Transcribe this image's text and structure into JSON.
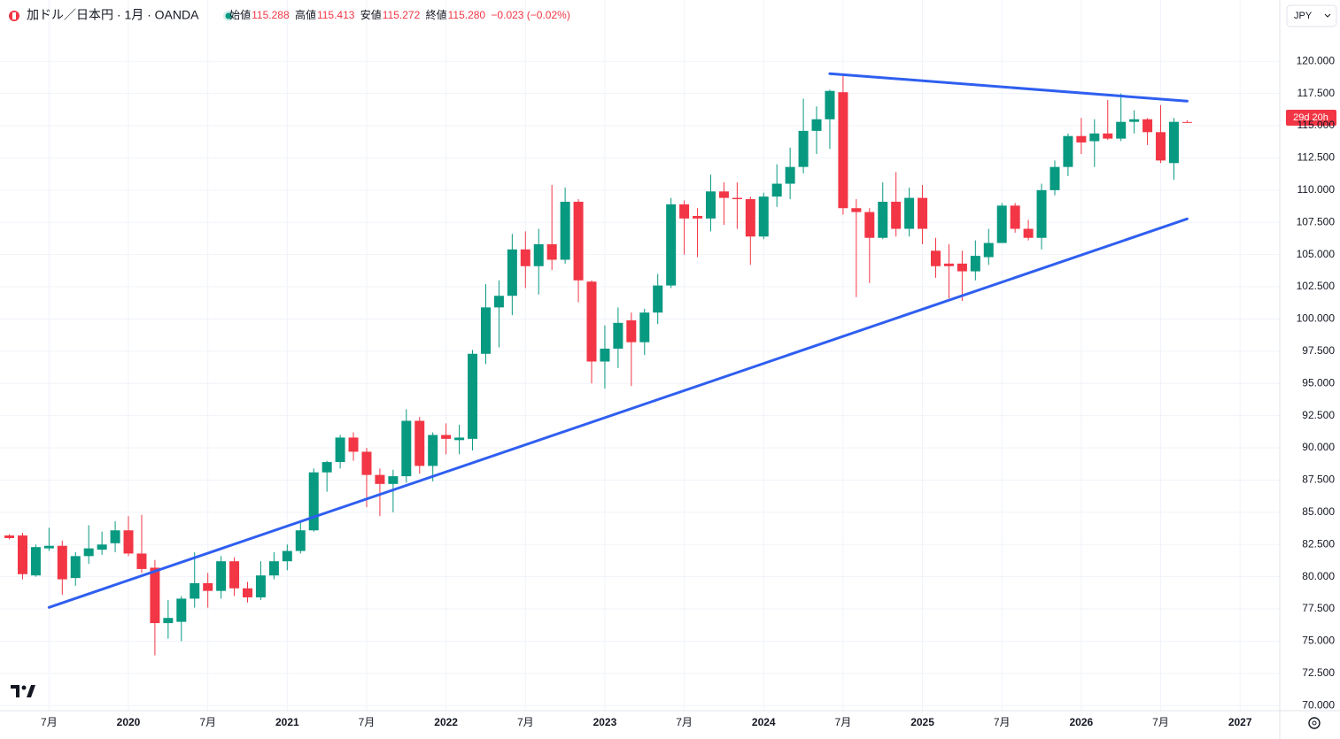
{
  "header": {
    "symbol": "加ドル／日本円 · 1月 · OANDA",
    "labels": [
      "始値",
      "高値",
      "安値",
      "終値"
    ],
    "value_labels": [
      "115.288",
      "115.413",
      "115.272",
      "115.280"
    ],
    "change": "−0.023 (−0.02%)"
  },
  "currency": "JPY",
  "countdown": "29d 20h",
  "chart_data": {
    "type": "candlestick",
    "up_color": "#089981",
    "down_color": "#f23645",
    "grid": true,
    "categories": [
      "2019-04",
      "2019-05",
      "2019-06",
      "2019-07",
      "2019-08",
      "2019-09",
      "2019-10",
      "2019-11",
      "2019-12",
      "2020-01",
      "2020-02",
      "2020-03",
      "2020-04",
      "2020-05",
      "2020-06",
      "2020-07",
      "2020-08",
      "2020-09",
      "2020-10",
      "2020-11",
      "2020-12",
      "2021-01",
      "2021-02",
      "2021-03",
      "2021-04",
      "2021-05",
      "2021-06",
      "2021-07",
      "2021-08",
      "2021-09",
      "2021-10",
      "2021-11",
      "2021-12",
      "2022-01",
      "2022-02",
      "2022-03",
      "2022-04",
      "2022-05",
      "2022-06",
      "2022-07",
      "2022-08",
      "2022-09",
      "2022-10",
      "2022-11",
      "2022-12",
      "2023-01",
      "2023-02",
      "2023-03",
      "2023-04",
      "2023-05",
      "2023-06",
      "2023-07",
      "2023-08",
      "2023-09",
      "2023-10",
      "2023-11",
      "2023-12",
      "2024-01",
      "2024-02",
      "2024-03",
      "2024-04",
      "2024-05",
      "2024-06",
      "2024-07",
      "2024-08",
      "2024-09",
      "2024-10",
      "2024-11",
      "2024-12",
      "2025-01",
      "2025-02",
      "2025-03",
      "2025-04",
      "2025-05",
      "2025-06",
      "2025-07",
      "2025-08",
      "2025-09",
      "2025-10",
      "2025-11",
      "2025-12",
      "2026-01",
      "2026-02",
      "2026-03",
      "2026-04",
      "2026-05",
      "2026-06",
      "2026-07",
      "2026-08",
      "2026-09"
    ],
    "open": [
      83.2,
      83.2,
      80.1,
      82.2,
      82.4,
      79.9,
      81.6,
      82.1,
      82.6,
      83.6,
      81.8,
      80.7,
      76.4,
      76.5,
      78.3,
      79.5,
      78.9,
      81.2,
      79.1,
      78.4,
      80.1,
      81.2,
      82.0,
      83.6,
      88.1,
      88.9,
      90.8,
      89.7,
      87.9,
      87.2,
      87.8,
      92.1,
      88.6,
      91.0,
      90.6,
      90.7,
      97.3,
      100.9,
      101.8,
      105.4,
      104.1,
      105.8,
      104.6,
      109.1,
      102.9,
      96.7,
      97.7,
      99.9,
      98.2,
      100.5,
      102.6,
      108.9,
      108.0,
      107.8,
      109.9,
      109.4,
      109.3,
      106.4,
      109.5,
      110.5,
      111.8,
      114.6,
      115.5,
      117.6,
      108.6,
      108.3,
      106.3,
      109.1,
      107.0,
      109.4,
      105.3,
      104.3,
      104.3,
      103.7,
      104.8,
      105.9,
      108.8,
      107.0,
      106.3,
      110.0,
      111.8,
      114.2,
      113.8,
      114.4,
      114.0,
      115.3,
      115.5,
      114.5,
      112.1,
      115.288
    ],
    "high": [
      83.3,
      83.4,
      82.5,
      83.8,
      82.8,
      81.9,
      84.0,
      83.5,
      84.3,
      84.7,
      84.8,
      81.3,
      78.2,
      78.5,
      81.9,
      80.3,
      81.6,
      81.5,
      79.6,
      81.2,
      81.9,
      82.5,
      84.3,
      88.4,
      89.0,
      91.0,
      91.2,
      90.0,
      88.4,
      88.3,
      93.0,
      92.4,
      91.2,
      91.9,
      91.8,
      97.6,
      102.7,
      103.0,
      106.6,
      106.8,
      107.0,
      110.4,
      110.2,
      109.3,
      103.0,
      99.5,
      100.9,
      100.5,
      100.8,
      103.5,
      109.4,
      109.2,
      108.6,
      111.2,
      110.6,
      110.6,
      109.5,
      109.8,
      112.0,
      113.3,
      117.1,
      116.5,
      117.8,
      118.9,
      109.3,
      108.6,
      110.6,
      111.4,
      110.2,
      110.4,
      106.3,
      105.8,
      105.3,
      106.1,
      107.0,
      109.0,
      109.0,
      107.7,
      110.5,
      112.3,
      114.4,
      115.6,
      115.5,
      117.0,
      117.5,
      116.2,
      115.6,
      116.6,
      115.6,
      115.413
    ],
    "low": [
      82.9,
      79.8,
      80.0,
      82.0,
      78.6,
      79.3,
      81.0,
      81.7,
      81.9,
      81.6,
      80.3,
      73.9,
      75.2,
      75.0,
      77.6,
      77.6,
      78.3,
      78.5,
      78.0,
      78.2,
      79.8,
      80.5,
      81.8,
      83.5,
      86.6,
      88.4,
      89.0,
      85.4,
      84.7,
      85.0,
      87.3,
      88.0,
      87.4,
      89.5,
      89.5,
      89.8,
      96.5,
      97.8,
      100.3,
      102.4,
      101.9,
      103.8,
      104.3,
      101.3,
      95.0,
      94.6,
      96.2,
      94.8,
      97.2,
      99.6,
      102.4,
      105.0,
      104.8,
      106.8,
      107.3,
      107.0,
      104.2,
      106.2,
      108.7,
      109.3,
      111.3,
      112.8,
      113.2,
      108.1,
      101.7,
      102.8,
      106.2,
      106.4,
      106.4,
      105.8,
      103.2,
      101.6,
      101.4,
      103.0,
      104.2,
      105.9,
      106.7,
      106.1,
      105.4,
      109.6,
      111.1,
      112.8,
      111.8,
      113.9,
      113.8,
      114.4,
      113.5,
      112.1,
      110.8,
      115.272
    ],
    "close": [
      83.0,
      80.2,
      82.3,
      82.4,
      79.8,
      81.6,
      82.2,
      82.5,
      83.6,
      81.8,
      80.6,
      76.4,
      76.8,
      78.3,
      79.5,
      78.9,
      81.2,
      79.1,
      78.4,
      80.1,
      81.2,
      82.0,
      83.6,
      88.1,
      88.9,
      90.8,
      89.7,
      87.9,
      87.2,
      87.8,
      92.1,
      88.6,
      91.0,
      90.7,
      90.8,
      97.3,
      100.9,
      101.8,
      105.4,
      104.1,
      105.8,
      104.6,
      109.1,
      103.0,
      96.7,
      97.7,
      99.7,
      98.2,
      100.5,
      102.6,
      108.9,
      107.8,
      107.8,
      109.9,
      109.4,
      109.3,
      106.4,
      109.5,
      110.5,
      111.8,
      114.6,
      115.5,
      117.7,
      108.6,
      108.3,
      106.3,
      109.1,
      107.0,
      109.4,
      107.0,
      104.1,
      104.1,
      103.7,
      104.9,
      105.9,
      108.8,
      107.0,
      106.3,
      110.0,
      111.8,
      114.2,
      113.7,
      114.4,
      114.0,
      115.3,
      115.5,
      114.5,
      112.3,
      115.3,
      115.28
    ],
    "xlim": [
      "2019-03",
      "2027-04"
    ],
    "xticks": [
      {
        "value": "2019-07",
        "label": "7月"
      },
      {
        "value": "2020-01",
        "label": "2020"
      },
      {
        "value": "2020-07",
        "label": "7月"
      },
      {
        "value": "2021-01",
        "label": "2021"
      },
      {
        "value": "2021-07",
        "label": "7月"
      },
      {
        "value": "2022-01",
        "label": "2022"
      },
      {
        "value": "2022-07",
        "label": "7月"
      },
      {
        "value": "2023-01",
        "label": "2023"
      },
      {
        "value": "2023-07",
        "label": "7月"
      },
      {
        "value": "2024-01",
        "label": "2024"
      },
      {
        "value": "2024-07",
        "label": "7月"
      },
      {
        "value": "2025-01",
        "label": "2025"
      },
      {
        "value": "2025-07",
        "label": "7月"
      },
      {
        "value": "2026-01",
        "label": "2026"
      },
      {
        "value": "2026-07",
        "label": "7月"
      },
      {
        "value": "2027-01",
        "label": "2027"
      }
    ],
    "ylim": [
      69.2,
      122.4
    ],
    "yticks": [
      {
        "value": 70,
        "label": "70.000"
      },
      {
        "value": 72.5,
        "label": "72.500"
      },
      {
        "value": 75,
        "label": "75.000"
      },
      {
        "value": 77.5,
        "label": "77.500"
      },
      {
        "value": 80,
        "label": "80.000"
      },
      {
        "value": 82.5,
        "label": "82.500"
      },
      {
        "value": 85,
        "label": "85.000"
      },
      {
        "value": 87.5,
        "label": "87.500"
      },
      {
        "value": 90,
        "label": "90.000"
      },
      {
        "value": 92.5,
        "label": "92.500"
      },
      {
        "value": 95,
        "label": "95.000"
      },
      {
        "value": 97.5,
        "label": "97.500"
      },
      {
        "value": 100,
        "label": "100.000"
      },
      {
        "value": 102.5,
        "label": "102.500"
      },
      {
        "value": 105,
        "label": "105.000"
      },
      {
        "value": 107.5,
        "label": "107.500"
      },
      {
        "value": 110,
        "label": "110.000"
      },
      {
        "value": 112.5,
        "label": "112.500"
      },
      {
        "value": 115,
        "label": "115.000"
      },
      {
        "value": 117.5,
        "label": "117.500"
      },
      {
        "value": 120,
        "label": "120.000"
      }
    ],
    "trendlines": [
      {
        "color": "#2f5ff0",
        "x": [
          "2019-07",
          "2026-09"
        ],
        "y": [
          77.62,
          107.77
        ]
      },
      {
        "color": "#2f5ff0",
        "x": [
          "2024-06",
          "2026-09"
        ],
        "y": [
          119.04,
          116.91
        ]
      }
    ]
  }
}
